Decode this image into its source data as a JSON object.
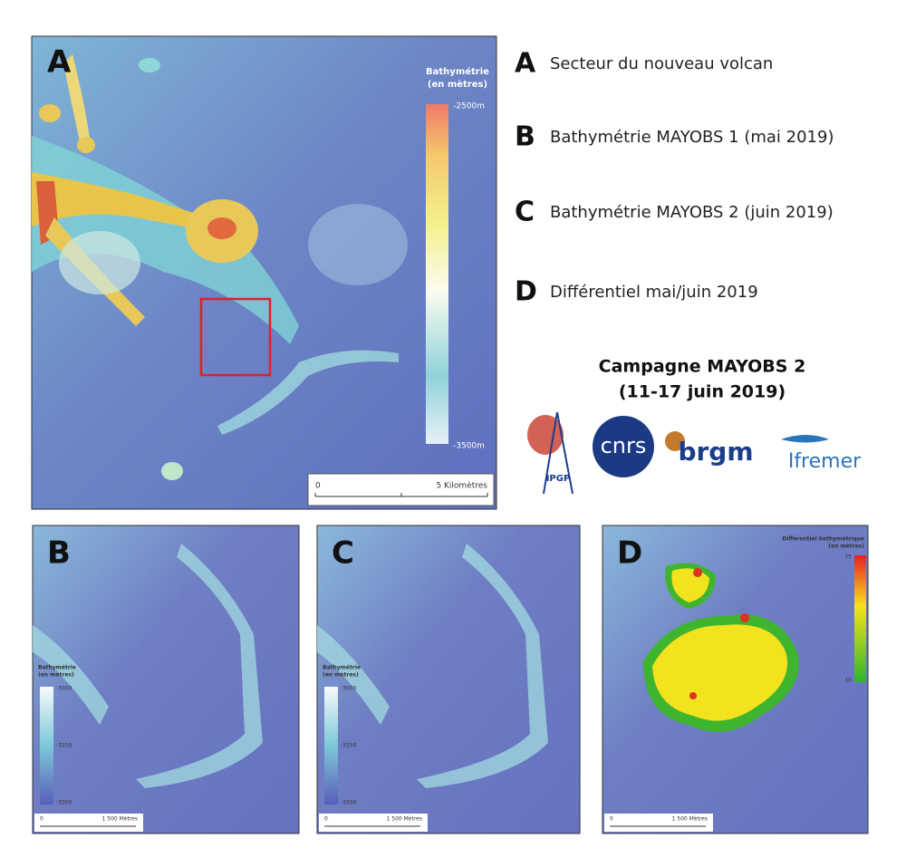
{
  "main_map": {
    "label": "A",
    "legend_title": [
      "Bathymétrie",
      "(en mètres)"
    ],
    "legend_max": "-2500m",
    "legend_min": "-3500m",
    "scale_start": "0",
    "scale_end": "5 Kilomètres"
  },
  "key": [
    {
      "letter": "A",
      "text": "Secteur du nouveau volcan"
    },
    {
      "letter": "B",
      "text": "Bathymétrie MAYOBS 1 (mai 2019)"
    },
    {
      "letter": "C",
      "text": "Bathymétrie MAYOBS 2 (juin 2019)"
    },
    {
      "letter": "D",
      "text": "Différentiel mai/juin 2019"
    }
  ],
  "campaign": {
    "title": "Campagne MAYOBS 2",
    "dates": "(11-17 juin 2019)"
  },
  "logos": [
    "IPGP",
    "cnrs",
    "brgm",
    "Ifremer"
  ],
  "panels": [
    {
      "label": "B",
      "legend_title": [
        "Bathymétrie",
        "(en mètres)"
      ],
      "legend_ticks": [
        "-3000",
        "-3250",
        "-3500"
      ],
      "scale_start": "0",
      "scale_end": "1 500 Mètres"
    },
    {
      "label": "C",
      "legend_title": [
        "Bathymétrie",
        "(en mètres)"
      ],
      "legend_ticks": [
        "-3000",
        "-3250",
        "-3500"
      ],
      "scale_start": "0",
      "scale_end": "1 500 Mètres"
    },
    {
      "label": "D",
      "legend_title": [
        "Différentiel bathymétrique",
        "(en mètres)"
      ],
      "legend_ticks": [
        "75",
        "10"
      ],
      "scale_start": "0",
      "scale_end": "1 500 Mètres"
    }
  ]
}
